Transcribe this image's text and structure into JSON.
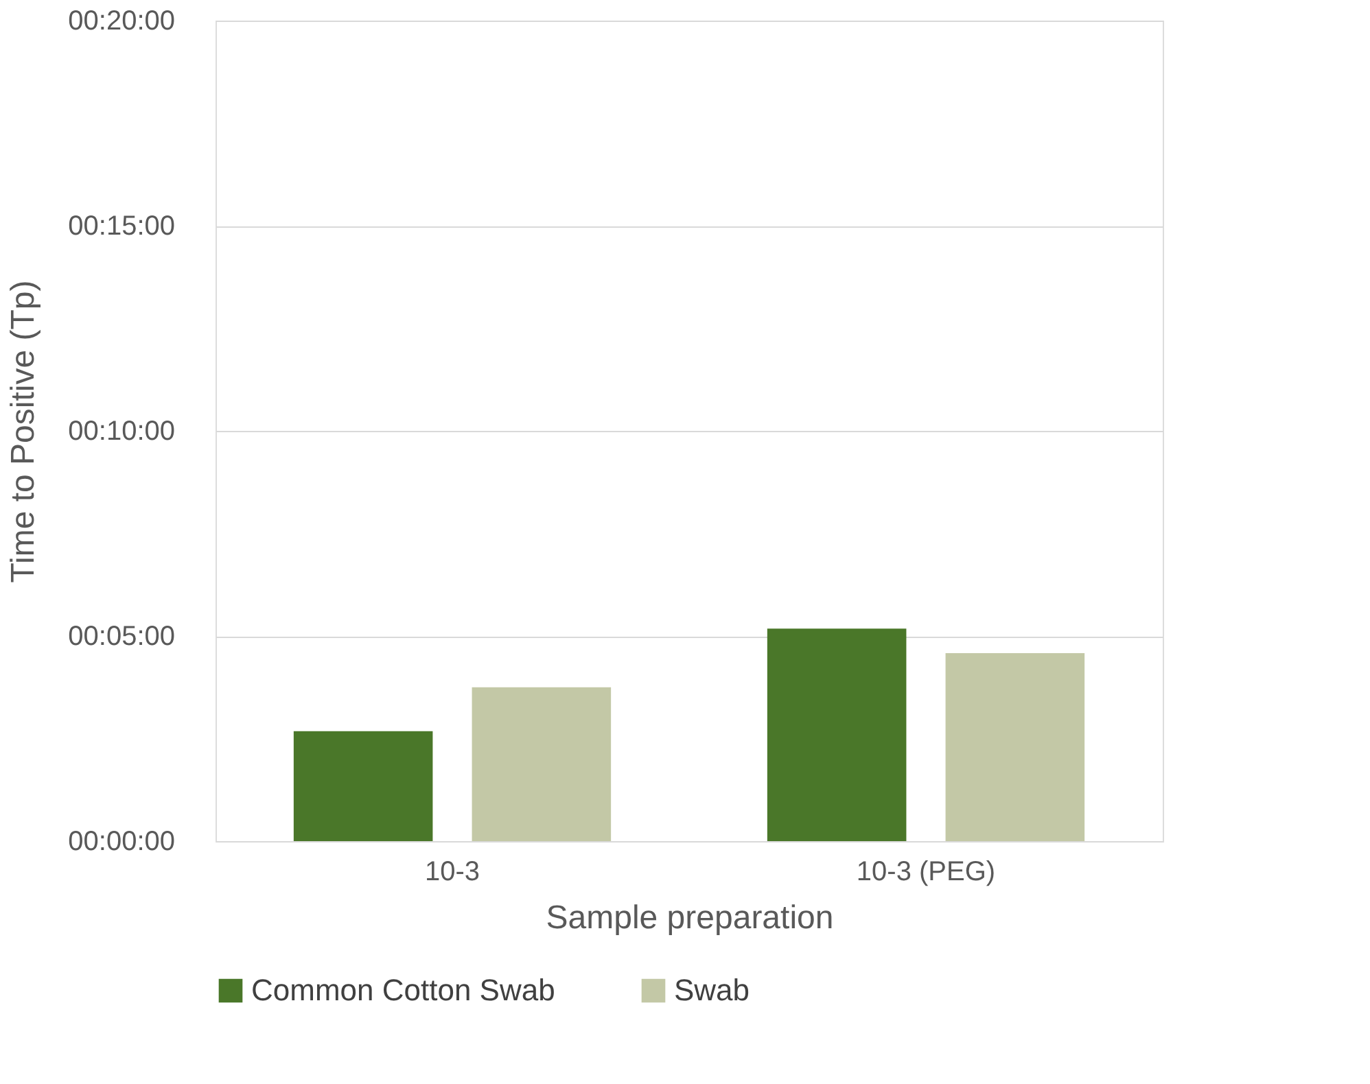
{
  "chart_data": {
    "type": "bar",
    "xlabel": "Sample preparation",
    "ylabel": "Time to Positive (Tp)",
    "categories": [
      "10-3",
      "10-3 (PEG)"
    ],
    "series": [
      {
        "name": "Common Cotton Swab",
        "color": "#4a7729",
        "values": [
          2.68,
          5.18
        ]
      },
      {
        "name": "Swab",
        "color": "#c3c8a6",
        "values": [
          3.75,
          4.58
        ]
      }
    ],
    "ylim": [
      0,
      20
    ],
    "yticks": [
      {
        "value": 0,
        "label": "00:00:00"
      },
      {
        "value": 5,
        "label": "00:05:00"
      },
      {
        "value": 10,
        "label": "00:10:00"
      },
      {
        "value": 15,
        "label": "00:15:00"
      },
      {
        "value": 20,
        "label": "00:20:00"
      }
    ],
    "grid": "y",
    "legend": "bottom"
  }
}
